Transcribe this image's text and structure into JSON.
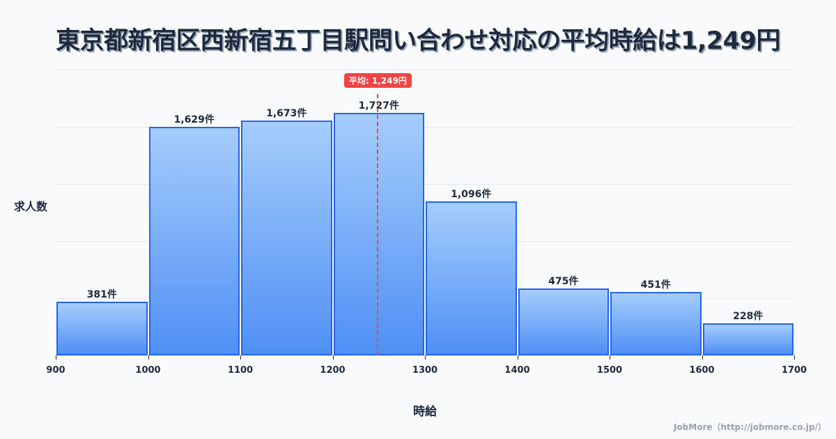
{
  "title": "東京都新宿区西新宿五丁目駅問い合わせ対応の平均時給は1,249円",
  "mean_badge": "平均: 1,249円",
  "y_axis_label": "求人数",
  "x_axis_label": "時給",
  "credit": "JobMore（http://jobmore.co.jp/）",
  "colors": {
    "bar_border": "#2563eb",
    "bar_top": "#a5cdfb",
    "bar_bottom": "#4f8ff5",
    "mean": "#ef4444",
    "text": "#1e293b"
  },
  "chart_data": {
    "type": "bar",
    "title": "東京都新宿区西新宿五丁目駅問い合わせ対応の平均時給は1,249円",
    "xlabel": "時給",
    "ylabel": "求人数",
    "bins": [
      [
        900,
        1000
      ],
      [
        1000,
        1100
      ],
      [
        1100,
        1200
      ],
      [
        1200,
        1300
      ],
      [
        1300,
        1400
      ],
      [
        1400,
        1500
      ],
      [
        1500,
        1600
      ],
      [
        1600,
        1700
      ]
    ],
    "categories": [
      "900-1000",
      "1000-1100",
      "1100-1200",
      "1200-1300",
      "1300-1400",
      "1400-1500",
      "1500-1600",
      "1600-1700"
    ],
    "values": [
      381,
      1629,
      1673,
      1727,
      1096,
      475,
      451,
      228
    ],
    "value_labels": [
      "381件",
      "1,629件",
      "1,673件",
      "1,727件",
      "1,096件",
      "475件",
      "451件",
      "228件"
    ],
    "x_ticks": [
      "900",
      "1000",
      "1100",
      "1200",
      "1300",
      "1400",
      "1500",
      "1600",
      "1700"
    ],
    "xlim": [
      900,
      1700
    ],
    "ylim": [
      0,
      2035
    ],
    "grid": true,
    "mean": 1249,
    "mean_label": "平均: 1,249円",
    "legend": null
  }
}
